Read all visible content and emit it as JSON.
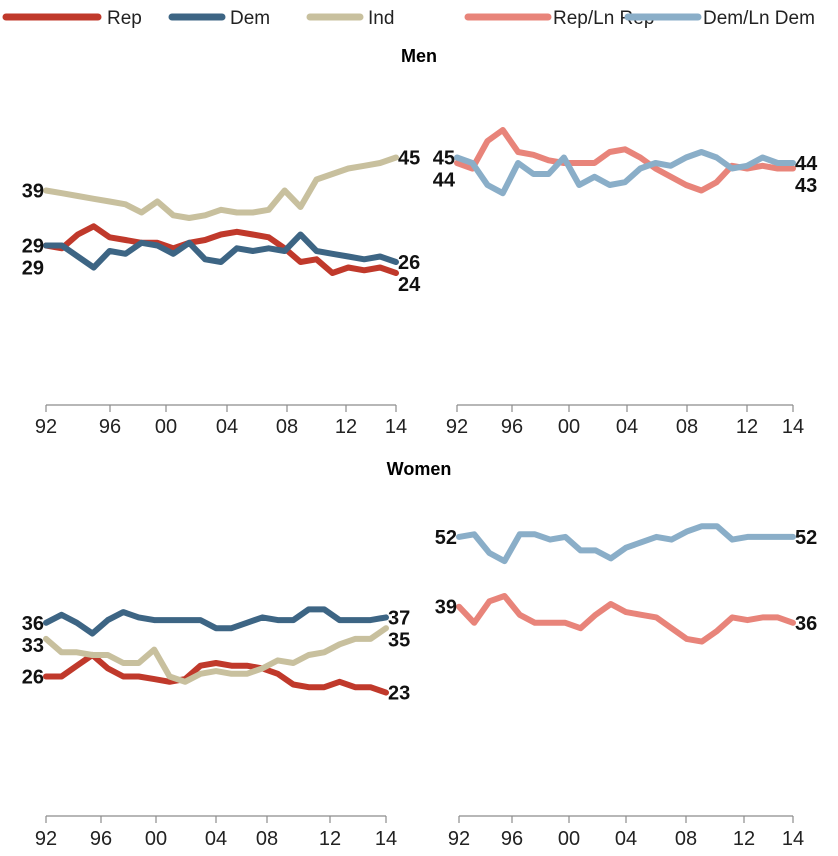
{
  "colors": {
    "Rep": "#c0392b",
    "Dem": "#3d6584",
    "Ind": "#c8c09e",
    "Rep/Ln Rep": "#e8847a",
    "Dem/Ln Dem": "#8aaec8"
  },
  "legend": {
    "position": "top",
    "items": [
      {
        "key": "Rep",
        "label": "Rep"
      },
      {
        "key": "Dem",
        "label": "Dem"
      },
      {
        "key": "Ind",
        "label": "Ind"
      },
      {
        "key": "Rep/Ln Rep",
        "label": "Rep/Ln Rep"
      },
      {
        "key": "Dem/Ln Dem",
        "label": "Dem/Ln Dem"
      }
    ]
  },
  "sections": [
    {
      "id": "men",
      "title": "Men"
    },
    {
      "id": "women",
      "title": "Women"
    }
  ],
  "chart_data": [
    {
      "type": "line",
      "section": "Men",
      "xticks": [
        "92",
        "96",
        "00",
        "04",
        "08",
        "12",
        "14"
      ],
      "xlim": [
        1992,
        2014
      ],
      "ylim": [
        0,
        60
      ],
      "grid": false,
      "series": [
        {
          "name": "Rep",
          "x": [
            1992,
            1993,
            1994,
            1995,
            1996,
            1997,
            1998,
            1999,
            2000,
            2001,
            2002,
            2003,
            2004,
            2005,
            2006,
            2007,
            2008,
            2009,
            2010,
            2011,
            2012,
            2013,
            2014
          ],
          "values": [
            29,
            28.5,
            31,
            32.5,
            30.5,
            30,
            29.5,
            29.5,
            28.5,
            29.5,
            30,
            31,
            31.5,
            31,
            30.5,
            28.5,
            26,
            26.5,
            24,
            25,
            24.5,
            25,
            24
          ],
          "start_label": "29",
          "end_label": "24"
        },
        {
          "name": "Dem",
          "x": [
            1992,
            1993,
            1994,
            1995,
            1996,
            1997,
            1998,
            1999,
            2000,
            2001,
            2002,
            2003,
            2004,
            2005,
            2006,
            2007,
            2008,
            2009,
            2010,
            2011,
            2012,
            2013,
            2014
          ],
          "values": [
            29,
            29,
            27,
            25,
            28,
            27.5,
            29.5,
            29,
            27.5,
            29.5,
            26.5,
            26,
            28.5,
            28,
            28.5,
            28,
            31,
            28,
            27.5,
            27,
            26.5,
            27,
            26
          ],
          "start_label": "29",
          "end_label": "26"
        },
        {
          "name": "Ind",
          "x": [
            1992,
            1993,
            1994,
            1995,
            1996,
            1997,
            1998,
            1999,
            2000,
            2001,
            2002,
            2003,
            2004,
            2005,
            2006,
            2007,
            2008,
            2009,
            2010,
            2011,
            2012,
            2013,
            2014
          ],
          "values": [
            39,
            38.5,
            38,
            37.5,
            37,
            36.5,
            35,
            37,
            34.5,
            34,
            34.5,
            35.5,
            35,
            35,
            35.5,
            39,
            36,
            41,
            42,
            43,
            43.5,
            44,
            45
          ],
          "start_label": "39",
          "end_label": "45"
        }
      ]
    },
    {
      "type": "line",
      "section": "Men",
      "xticks": [
        "92",
        "96",
        "00",
        "04",
        "08",
        "12",
        "14"
      ],
      "xlim": [
        1992,
        2014
      ],
      "ylim": [
        0,
        60
      ],
      "grid": false,
      "series": [
        {
          "name": "Rep/Ln Rep",
          "x": [
            1992,
            1993,
            1994,
            1995,
            1996,
            1997,
            1998,
            1999,
            2000,
            2001,
            2002,
            2003,
            2004,
            2005,
            2006,
            2007,
            2008,
            2009,
            2010,
            2011,
            2012,
            2013,
            2014
          ],
          "values": [
            44,
            43,
            48,
            50,
            46,
            45.5,
            44.5,
            44,
            44,
            44,
            46,
            46.5,
            45,
            43,
            41.5,
            40,
            39,
            40.5,
            43.5,
            43,
            43.5,
            43,
            43
          ],
          "start_label": "44",
          "end_label": "43"
        },
        {
          "name": "Dem/Ln Dem",
          "x": [
            1992,
            1993,
            1994,
            1995,
            1996,
            1997,
            1998,
            1999,
            2000,
            2001,
            2002,
            2003,
            2004,
            2005,
            2006,
            2007,
            2008,
            2009,
            2010,
            2011,
            2012,
            2013,
            2014
          ],
          "values": [
            45,
            44,
            40,
            38.5,
            44,
            42,
            42,
            45,
            40,
            41.5,
            40,
            40.5,
            43,
            44,
            43.5,
            45,
            46,
            45,
            43,
            43.5,
            45,
            44,
            44
          ],
          "start_label": "45",
          "end_label": "44"
        }
      ]
    },
    {
      "type": "line",
      "section": "Women",
      "xticks": [
        "92",
        "96",
        "00",
        "04",
        "08",
        "12",
        "14"
      ],
      "xlim": [
        1992,
        2014
      ],
      "ylim": [
        0,
        60
      ],
      "grid": false,
      "series": [
        {
          "name": "Rep",
          "x": [
            1992,
            1993,
            1994,
            1995,
            1996,
            1997,
            1998,
            1999,
            2000,
            2001,
            2002,
            2003,
            2004,
            2005,
            2006,
            2007,
            2008,
            2009,
            2010,
            2011,
            2012,
            2013,
            2014
          ],
          "values": [
            26,
            26,
            28,
            30,
            27.5,
            26,
            26,
            25.5,
            25,
            25.5,
            28,
            28.5,
            28,
            28,
            27.5,
            26.5,
            24.5,
            24,
            24,
            25,
            24,
            24,
            23
          ],
          "start_label": "26",
          "end_label": "23"
        },
        {
          "name": "Dem",
          "x": [
            1992,
            1993,
            1994,
            1995,
            1996,
            1997,
            1998,
            1999,
            2000,
            2001,
            2002,
            2003,
            2004,
            2005,
            2006,
            2007,
            2008,
            2009,
            2010,
            2011,
            2012,
            2013,
            2014
          ],
          "values": [
            36,
            37.5,
            36,
            34,
            36.5,
            38,
            37,
            36.5,
            36.5,
            36.5,
            36.5,
            35,
            35,
            36,
            37,
            36.5,
            36.5,
            38.5,
            38.5,
            36.5,
            36.5,
            36.5,
            37
          ],
          "start_label": "36",
          "end_label": "37"
        },
        {
          "name": "Ind",
          "x": [
            1992,
            1993,
            1994,
            1995,
            1996,
            1997,
            1998,
            1999,
            2000,
            2001,
            2002,
            2003,
            2004,
            2005,
            2006,
            2007,
            2008,
            2009,
            2010,
            2011,
            2012,
            2013,
            2014
          ],
          "values": [
            33,
            30.5,
            30.5,
            30,
            30,
            28.5,
            28.5,
            31,
            26,
            25,
            26.5,
            27,
            26.5,
            26.5,
            27.5,
            29,
            28.5,
            30,
            30.5,
            32,
            33,
            33,
            35
          ],
          "start_label": "33",
          "end_label": "35"
        }
      ]
    },
    {
      "type": "line",
      "section": "Women",
      "xticks": [
        "92",
        "96",
        "00",
        "04",
        "08",
        "12",
        "14"
      ],
      "xlim": [
        1992,
        2014
      ],
      "ylim": [
        0,
        60
      ],
      "grid": false,
      "series": [
        {
          "name": "Rep/Ln Rep",
          "x": [
            1992,
            1993,
            1994,
            1995,
            1996,
            1997,
            1998,
            1999,
            2000,
            2001,
            2002,
            2003,
            2004,
            2005,
            2006,
            2007,
            2008,
            2009,
            2010,
            2011,
            2012,
            2013,
            2014
          ],
          "values": [
            39,
            36,
            40,
            41,
            37.5,
            36,
            36,
            36,
            35,
            37.5,
            39.5,
            38,
            37.5,
            37,
            35,
            33,
            32.5,
            34.5,
            37,
            36.5,
            37,
            37,
            36
          ],
          "start_label": "39",
          "end_label": "36"
        },
        {
          "name": "Dem/Ln Dem",
          "x": [
            1992,
            1993,
            1994,
            1995,
            1996,
            1997,
            1998,
            1999,
            2000,
            2001,
            2002,
            2003,
            2004,
            2005,
            2006,
            2007,
            2008,
            2009,
            2010,
            2011,
            2012,
            2013,
            2014
          ],
          "values": [
            52,
            52.5,
            49,
            47.5,
            52.5,
            52.5,
            51.5,
            52,
            49.5,
            49.5,
            48,
            50,
            51,
            52,
            51.5,
            53,
            54,
            54,
            51.5,
            52,
            52,
            52,
            52
          ],
          "start_label": "52",
          "end_label": "52"
        }
      ]
    }
  ]
}
